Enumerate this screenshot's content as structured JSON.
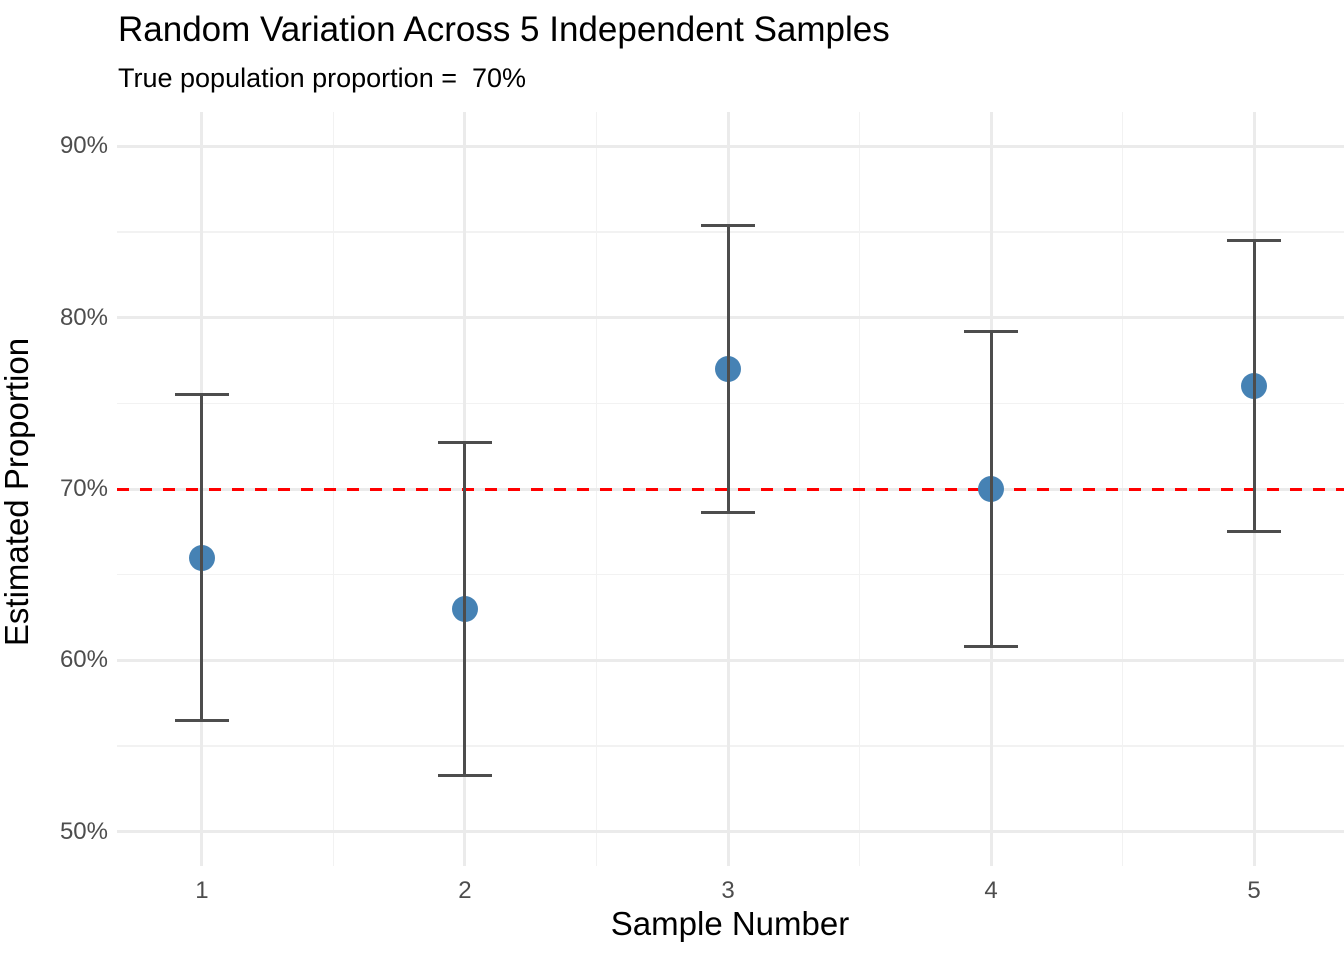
{
  "header": {
    "title": "Random Variation Across 5 Independent Samples",
    "subtitle": "True population proportion =  70%"
  },
  "axes": {
    "x_title": "Sample Number",
    "y_title": "Estimated Proportion"
  },
  "chart_data": {
    "type": "scatter",
    "title": "Random Variation Across 5 Independent Samples",
    "subtitle": "True population proportion =  70%",
    "xlabel": "Sample Number",
    "ylabel": "Estimated Proportion",
    "x": [
      1,
      2,
      3,
      4,
      5
    ],
    "series": [
      {
        "name": "estimated_proportion_pct",
        "values": [
          66,
          63,
          77,
          70,
          76
        ]
      }
    ],
    "error_low": [
      56.5,
      53.3,
      68.6,
      60.8,
      67.5
    ],
    "error_high": [
      75.5,
      72.7,
      85.4,
      79.2,
      84.5
    ],
    "reference_line_y": 70,
    "x_ticks": {
      "values": [
        1,
        2,
        3,
        4,
        5
      ],
      "labels": [
        "1",
        "2",
        "3",
        "4",
        "5"
      ]
    },
    "y_ticks": {
      "values": [
        50,
        60,
        70,
        80,
        90
      ],
      "labels": [
        "50%",
        "60%",
        "70%",
        "80%",
        "90%"
      ]
    },
    "x_minor": [
      1.5,
      2.5,
      3.5,
      4.5
    ],
    "y_minor": [
      55,
      65,
      75,
      85
    ],
    "xlim": [
      0.677,
      5.342
    ],
    "ylim": [
      48,
      92
    ],
    "grid": "on",
    "legend": "none",
    "colors": {
      "point": "#4682B4",
      "errorbar": "#4D4D4D",
      "reference": "#FF0000",
      "grid_major": "#EBEBEB",
      "grid_minor": "#F2F2F2",
      "tick_text": "#4D4D4D",
      "title_text": "#000000",
      "background": "#FFFFFF"
    }
  }
}
